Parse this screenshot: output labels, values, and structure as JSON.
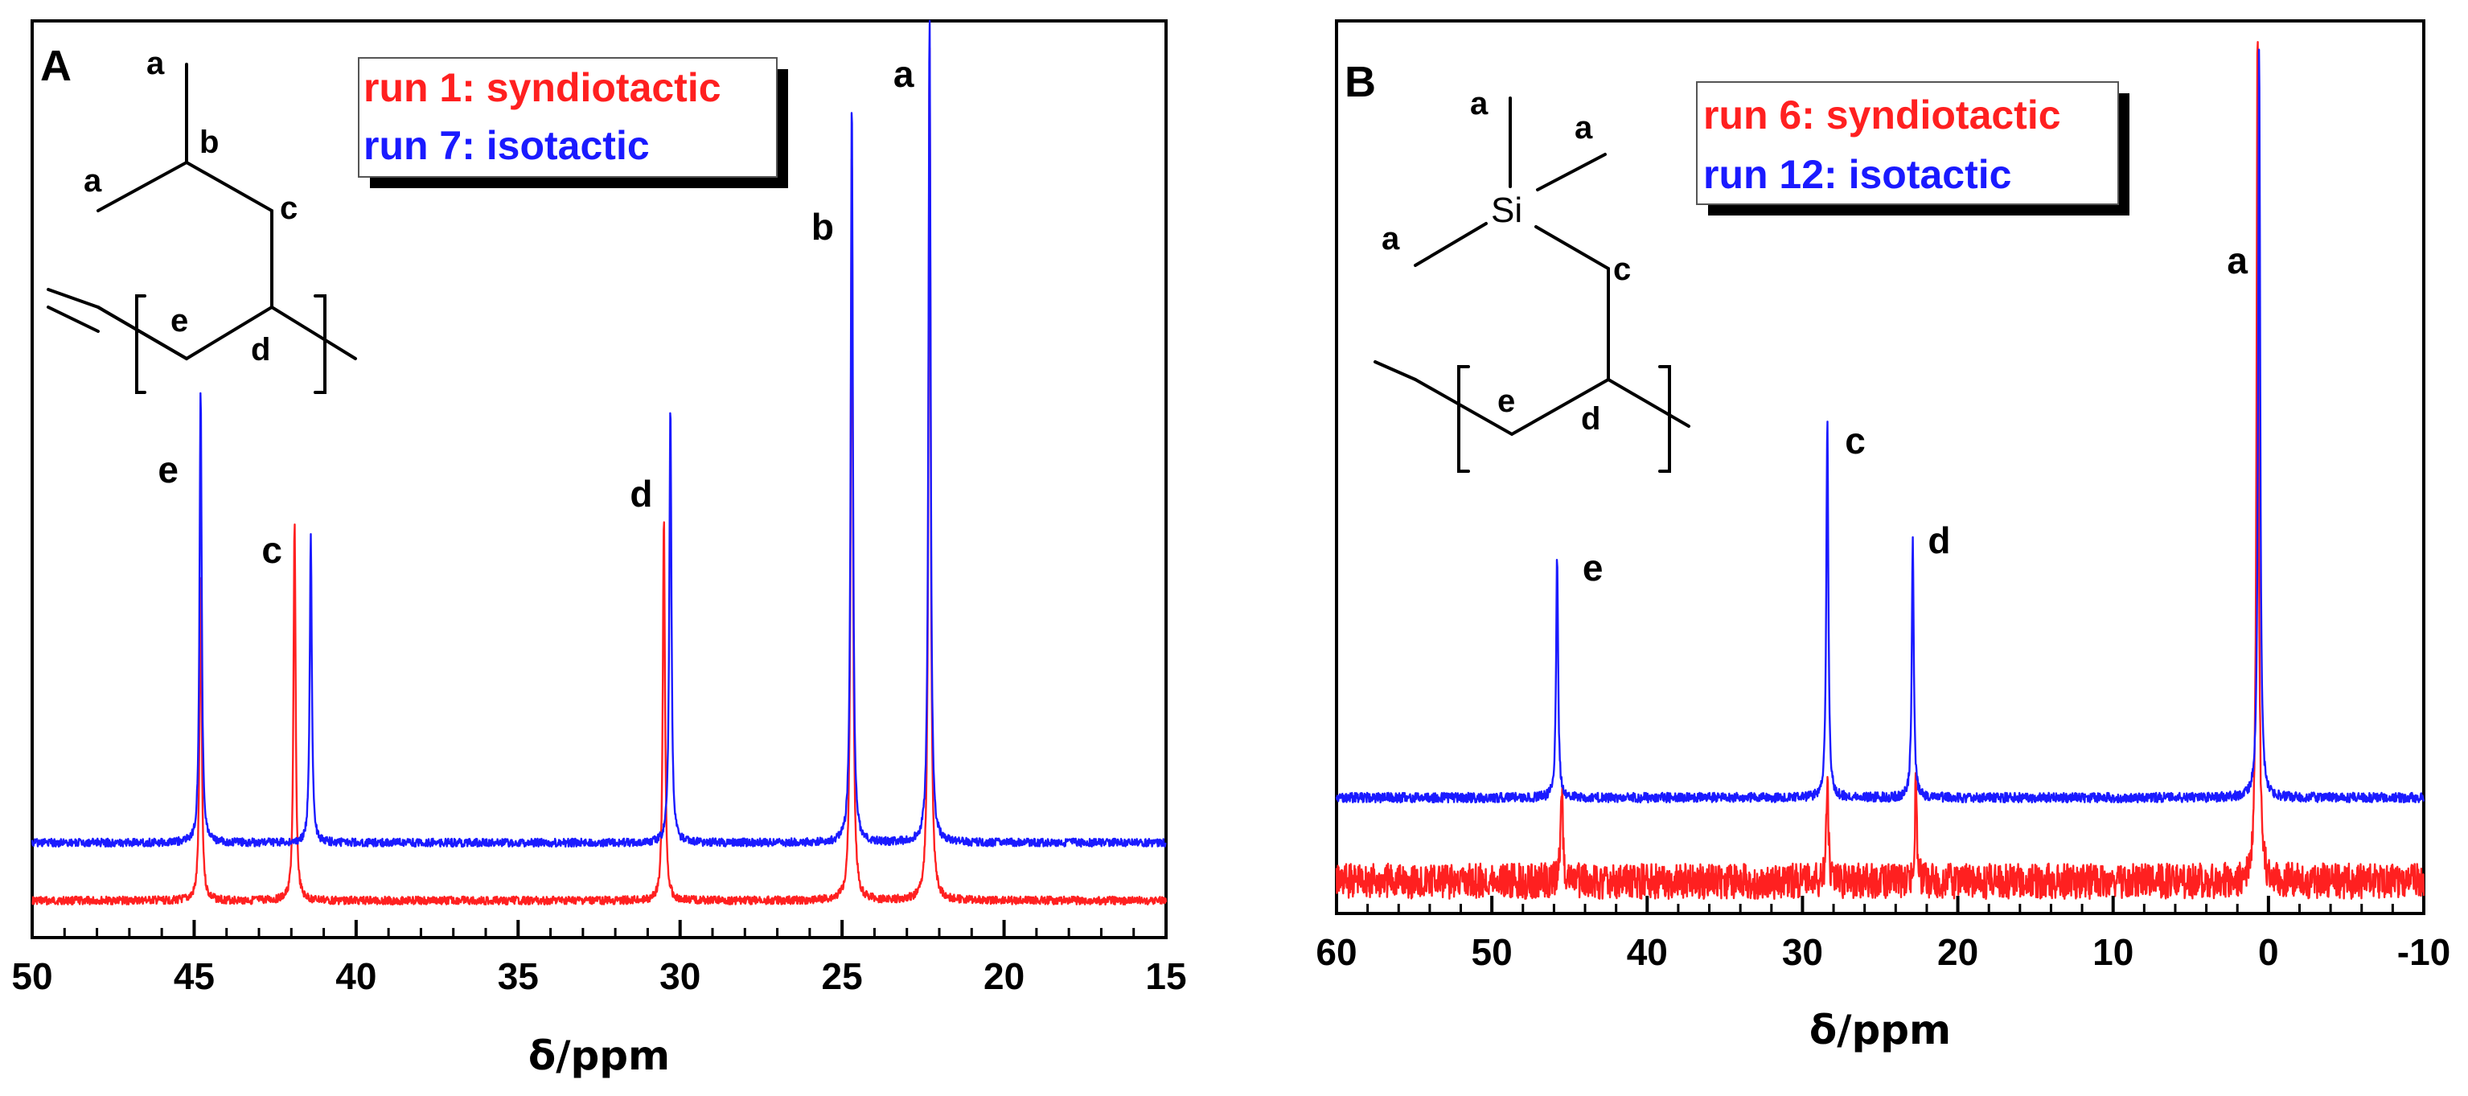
{
  "colors": {
    "syndiotactic": "#ff2020",
    "isotactic": "#1a1aff",
    "axis": "#000000"
  },
  "chart_data": [
    {
      "type": "line",
      "panel_label": "A",
      "xlabel": "δ/ppm",
      "ylabel": "",
      "xlim": [
        50,
        15
      ],
      "x_reversed": true,
      "xticks": [
        "50",
        "45",
        "40",
        "35",
        "30",
        "25",
        "20",
        "15"
      ],
      "legend": [
        "run 1: syndiotactic",
        "run 7: isotactic"
      ],
      "legend_position": "top-center",
      "series": [
        {
          "name": "run 1: syndiotactic",
          "color": "#ff2020",
          "peaks": [
            {
              "x": 44.8,
              "height": 0.38
            },
            {
              "x": 41.9,
              "height": 0.44
            },
            {
              "x": 30.5,
              "height": 0.45
            },
            {
              "x": 24.7,
              "height": 0.88
            },
            {
              "x": 22.3,
              "height": 1.0
            }
          ]
        },
        {
          "name": "run 7: isotactic",
          "color": "#1a1aff",
          "peaks": [
            {
              "x": 44.8,
              "height": 0.55
            },
            {
              "x": 41.4,
              "height": 0.37
            },
            {
              "x": 30.3,
              "height": 0.53
            },
            {
              "x": 24.7,
              "height": 0.9
            },
            {
              "x": 22.3,
              "height": 1.0
            }
          ]
        }
      ],
      "peak_labels": [
        {
          "text": "e",
          "x": 45.8
        },
        {
          "text": "c",
          "x": 42.6
        },
        {
          "text": "d",
          "x": 31.2
        },
        {
          "text": "b",
          "x": 25.6
        },
        {
          "text": "a",
          "x": 23.1
        }
      ],
      "structure_labels": {
        "a1": "a",
        "a2": "a",
        "b": "b",
        "c": "c",
        "d": "d",
        "e": "e"
      }
    },
    {
      "type": "line",
      "panel_label": "B",
      "xlabel": "δ/ppm",
      "ylabel": "",
      "xlim": [
        60,
        -10
      ],
      "x_reversed": true,
      "xticks": [
        "60",
        "50",
        "40",
        "30",
        "20",
        "10",
        "0",
        "-10"
      ],
      "legend": [
        "run 6: syndiotactic",
        "run 12: isotactic"
      ],
      "legend_position": "top-center",
      "series": [
        {
          "name": "run 6: syndiotactic",
          "color": "#ff2020",
          "peaks": [
            {
              "x": 45.5,
              "height": 0.12
            },
            {
              "x": 28.4,
              "height": 0.12
            },
            {
              "x": 22.7,
              "height": 0.12
            },
            {
              "x": 0.7,
              "height": 1.0
            }
          ]
        },
        {
          "name": "run 12: isotactic",
          "color": "#1a1aff",
          "peaks": [
            {
              "x": 45.8,
              "height": 0.32
            },
            {
              "x": 28.4,
              "height": 0.5
            },
            {
              "x": 22.9,
              "height": 0.34
            },
            {
              "x": 0.6,
              "height": 1.0
            }
          ]
        }
      ],
      "peak_labels": [
        {
          "text": "e",
          "x": 43.5
        },
        {
          "text": "c",
          "x": 26.6
        },
        {
          "text": "d",
          "x": 21.2
        },
        {
          "text": "a",
          "x": 2.0
        }
      ],
      "structure_labels": {
        "si": "Si",
        "a1": "a",
        "a2": "a",
        "a3": "a",
        "c": "c",
        "d": "d",
        "e": "e"
      }
    }
  ]
}
